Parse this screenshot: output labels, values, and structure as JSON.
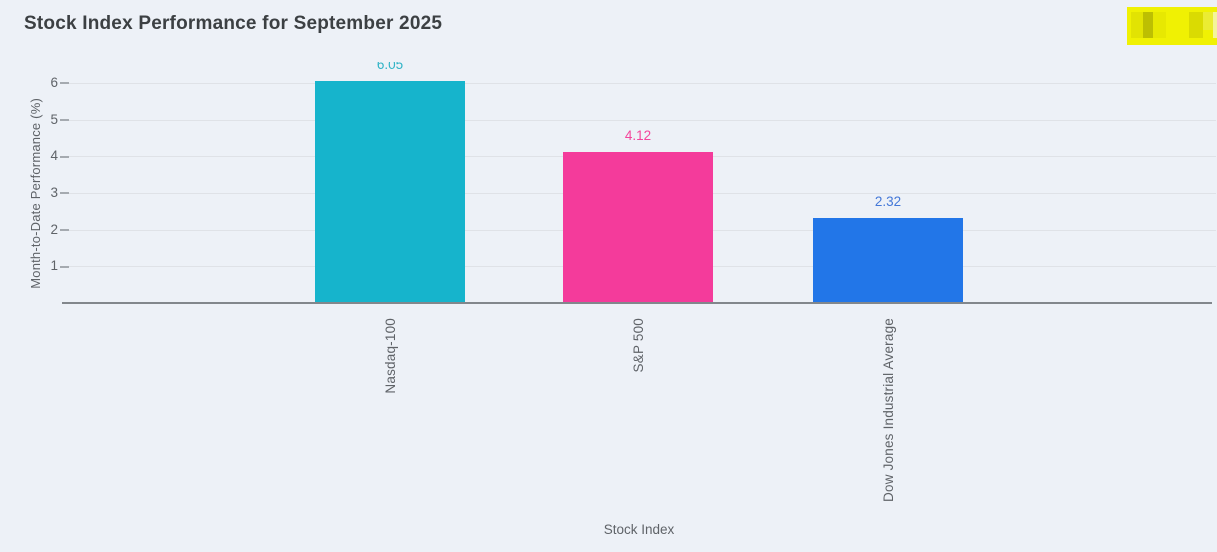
{
  "page": {
    "title": "Stock Index Performance for September 2025"
  },
  "annotations": {
    "highlight_color": "#f0f103"
  },
  "chart_data": {
    "type": "bar",
    "title": "Stock Index Performance for September 2025",
    "categories": [
      "Nasdaq-100",
      "S&P 500",
      "Dow Jones Industrial Average"
    ],
    "values": [
      6.05,
      4.12,
      2.32
    ],
    "value_labels": [
      "6.05",
      "4.12",
      "2.32"
    ],
    "bar_colors": [
      "#16b4cc",
      "#f43b9b",
      "#2276e8"
    ],
    "label_colors": [
      "#2fb3c6",
      "#f4459c",
      "#4478d8"
    ],
    "xlabel": "Stock Index",
    "ylabel": "Month-to-Date Performance (%)",
    "yticks": [
      1,
      2,
      3,
      4,
      5,
      6
    ],
    "ylim": [
      0,
      6.3
    ],
    "grid": true,
    "legend": false
  }
}
